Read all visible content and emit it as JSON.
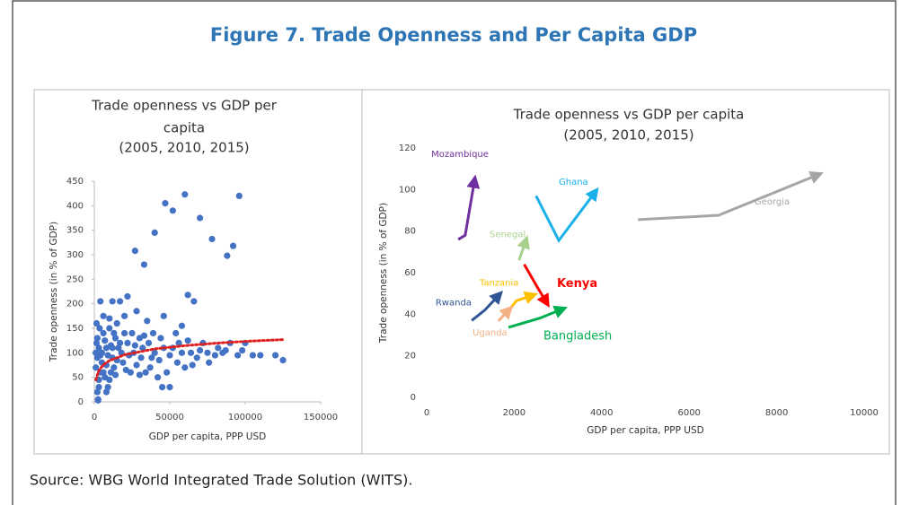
{
  "title": "Figure 7. Trade Openness and Per Capita GDP",
  "source": "Source: WBG World Integrated Trade Solution (WITS).",
  "chart_data": [
    {
      "type": "scatter",
      "title": [
        "Trade openness vs GDP per",
        "capita",
        "(2005, 2010, 2015)"
      ],
      "x_label": "GDP per capita, PPP USD",
      "y_label": "Trade openness (in % of GDP)",
      "color": "#4472c4",
      "xlim": [
        0,
        150000
      ],
      "xticks": [
        0,
        50000,
        100000,
        150000
      ],
      "ylim": [
        0,
        450
      ],
      "yticks": [
        0,
        50,
        100,
        150,
        200,
        250,
        300,
        350,
        400,
        450
      ],
      "x": [
        27000,
        33000,
        40000,
        47000,
        52000,
        60000,
        70000,
        78000,
        88000,
        92000,
        96000,
        62000,
        66000,
        22000,
        17000,
        12000,
        4000,
        28000,
        46000,
        58000,
        35000,
        10000,
        15000,
        20000,
        85000,
        95000,
        110000,
        120000,
        125000,
        100000,
        90000,
        80000,
        75000,
        70000,
        65000,
        60000,
        55000,
        50000,
        45000,
        48000,
        42000,
        38000,
        32000,
        30000,
        25000,
        22000,
        18000,
        14000,
        12000,
        10000,
        8000,
        6000,
        5000,
        4000,
        3000,
        2500,
        1500,
        2000,
        1000,
        3500,
        7000,
        9000,
        11000,
        13000,
        16000,
        19000,
        21000,
        23000,
        26000,
        28000,
        30000,
        34000,
        36000,
        40000,
        44000,
        52000,
        56000,
        62000,
        68000,
        72000,
        76000,
        82000,
        87000,
        98000,
        105000,
        5000,
        7000,
        9000,
        11000,
        13000,
        15000,
        17000,
        1000,
        2000,
        3000,
        4000,
        6000,
        8000,
        10000,
        12000,
        14000,
        20000,
        24000,
        27000,
        31000,
        33000,
        37000,
        39000,
        43000,
        46000,
        50000,
        54000,
        58000,
        64000,
        2000,
        3000,
        1500,
        6000,
        8000,
        2500
      ],
      "values": [
        308,
        280,
        345,
        405,
        390,
        423,
        375,
        332,
        298,
        318,
        420,
        218,
        205,
        215,
        205,
        205,
        205,
        185,
        175,
        155,
        165,
        170,
        160,
        175,
        100,
        95,
        95,
        95,
        85,
        120,
        120,
        95,
        100,
        105,
        75,
        70,
        80,
        30,
        30,
        60,
        50,
        90,
        110,
        130,
        140,
        120,
        100,
        130,
        90,
        150,
        110,
        140,
        80,
        60,
        30,
        5,
        120,
        90,
        70,
        150,
        50,
        30,
        60,
        70,
        110,
        80,
        65,
        95,
        100,
        75,
        55,
        60,
        120,
        100,
        130,
        110,
        120,
        125,
        90,
        120,
        80,
        110,
        105,
        105,
        95,
        100,
        125,
        95,
        115,
        140,
        85,
        120,
        100,
        130,
        110,
        95,
        60,
        75,
        45,
        110,
        55,
        140,
        60,
        115,
        90,
        135,
        70,
        140,
        85,
        110,
        95,
        140,
        100,
        100,
        20,
        45,
        160,
        175,
        20,
        3
      ],
      "trendline": {
        "color": "#e02020",
        "x": [
          1000,
          3000,
          6000,
          10000,
          20000,
          40000,
          60000,
          80000,
          100000,
          125000
        ],
        "values": [
          45,
          63.7,
          75.5,
          84,
          96,
          108,
          114.6,
          119.5,
          123.3,
          127
        ]
      }
    },
    {
      "type": "line",
      "title": [
        "Trade openness vs GDP per capita",
        "(2005, 2010, 2015)"
      ],
      "x_label": "GDP per capita, PPP USD",
      "y_label": "Trade openness (in % of GDP)",
      "xlim": [
        0,
        10000
      ],
      "xticks": [
        0,
        2000,
        4000,
        6000,
        8000,
        10000
      ],
      "ylim": [
        0,
        120
      ],
      "yticks": [
        0,
        20,
        40,
        60,
        80,
        100,
        120
      ],
      "series": [
        {
          "name": "Mozambique",
          "color": "#7030a0",
          "x": [
            720,
            880,
            1090
          ],
          "values": [
            76,
            78,
            104
          ]
        },
        {
          "name": "Ghana",
          "color": "#1ab0e8",
          "x": [
            2500,
            3020,
            3840
          ],
          "values": [
            97,
            75.5,
            98.5
          ]
        },
        {
          "name": "Georgia",
          "color": "#a6a6a6",
          "x": [
            4830,
            6670,
            8930
          ],
          "values": [
            85.5,
            87.6,
            107
          ]
        },
        {
          "name": "Senegal",
          "color": "#a9d18e",
          "x": [
            2110,
            2220,
            2260
          ],
          "values": [
            66,
            72.5,
            75
          ]
        },
        {
          "name": "Kenya",
          "color": "#ff0000",
          "x": [
            2230,
            2530,
            2730
          ],
          "values": [
            64,
            53,
            46
          ]
        },
        {
          "name": "Tanzania",
          "color": "#ffc000",
          "x": [
            1810,
            2050,
            2400
          ],
          "values": [
            40,
            46.5,
            49
          ]
        },
        {
          "name": "Rwanda",
          "color": "#2f5597",
          "x": [
            1030,
            1330,
            1640
          ],
          "values": [
            37,
            42,
            49
          ]
        },
        {
          "name": "Uganda",
          "color": "#f4b183",
          "x": [
            1640,
            1750,
            1870
          ],
          "values": [
            36.7,
            39.3,
            41.9
          ]
        },
        {
          "name": "Bangladesh",
          "color": "#00b050",
          "x": [
            1870,
            2570,
            3080
          ],
          "values": [
            33.7,
            38,
            42.3
          ]
        }
      ]
    }
  ]
}
